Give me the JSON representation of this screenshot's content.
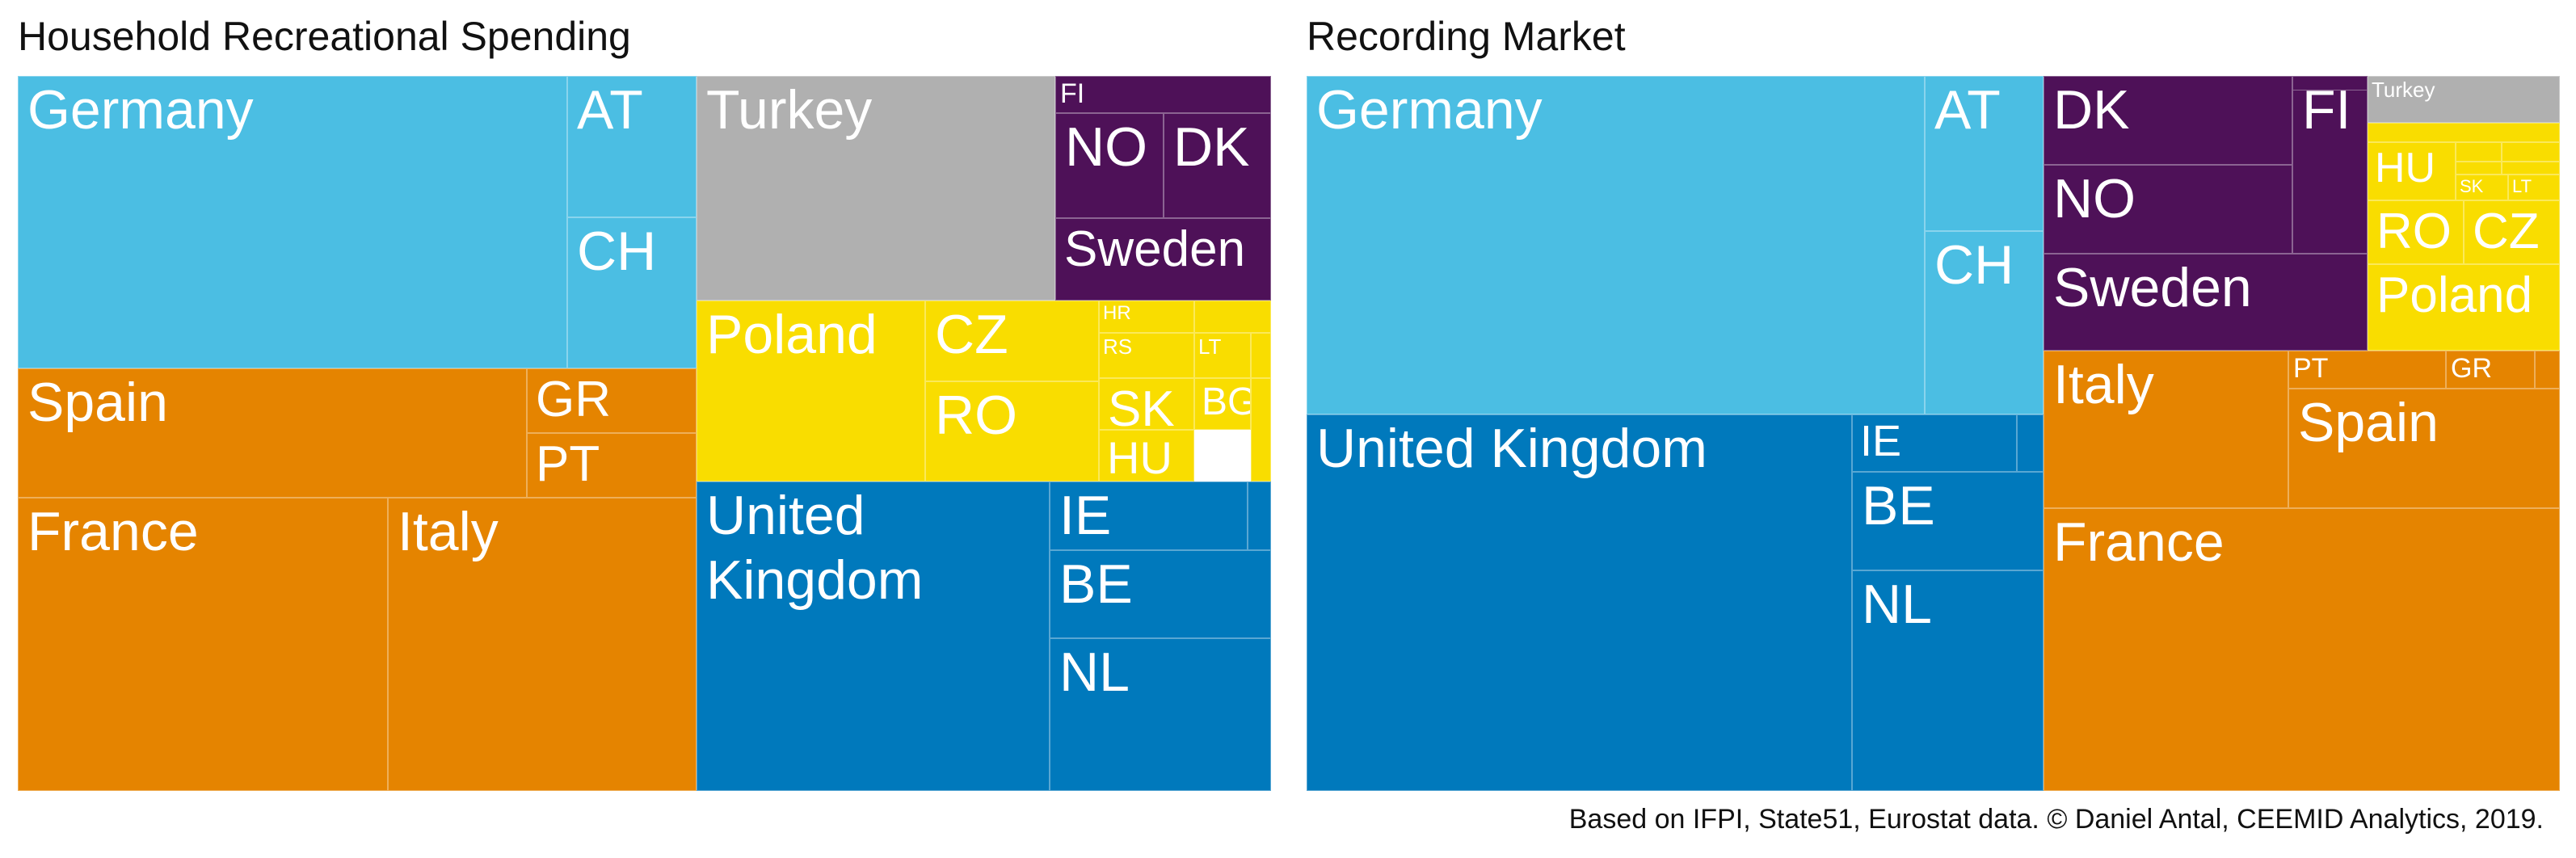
{
  "palette": {
    "central_west": "#4bbee3",
    "south_west": "#e58400",
    "turkey": "#b0b0b0",
    "nordic": "#4e1158",
    "central_east": "#f9dd00",
    "north_west": "#0079bc"
  },
  "footnote": "Based on IFPI, State51, Eurostat data. © Daniel Antal, CEEMID Analytics, 2019.",
  "chart_data": [
    {
      "type": "treemap",
      "title": "Household Recreational Spending",
      "tiles": [
        {
          "id": "germany",
          "label": "Germany",
          "group": "central_west"
        },
        {
          "id": "at",
          "label": "AT",
          "group": "central_west"
        },
        {
          "id": "ch",
          "label": "CH",
          "group": "central_west"
        },
        {
          "id": "spain",
          "label": "Spain",
          "group": "south_west"
        },
        {
          "id": "gr",
          "label": "GR",
          "group": "south_west"
        },
        {
          "id": "pt",
          "label": "PT",
          "group": "south_west"
        },
        {
          "id": "france",
          "label": "France",
          "group": "south_west"
        },
        {
          "id": "italy",
          "label": "Italy",
          "group": "south_west"
        },
        {
          "id": "turkey",
          "label": "Turkey",
          "group": "turkey"
        },
        {
          "id": "fi",
          "label": "FI",
          "group": "nordic"
        },
        {
          "id": "no",
          "label": "NO",
          "group": "nordic"
        },
        {
          "id": "dk",
          "label": "DK",
          "group": "nordic"
        },
        {
          "id": "sweden",
          "label": "Sweden",
          "group": "nordic"
        },
        {
          "id": "poland",
          "label": "Poland",
          "group": "central_east"
        },
        {
          "id": "cz",
          "label": "CZ",
          "group": "central_east"
        },
        {
          "id": "ro",
          "label": "RO",
          "group": "central_east"
        },
        {
          "id": "hr",
          "label": "HR",
          "group": "central_east"
        },
        {
          "id": "rs",
          "label": "RS",
          "group": "central_east"
        },
        {
          "id": "lt",
          "label": "LT",
          "group": "central_east"
        },
        {
          "id": "sk",
          "label": "SK",
          "group": "central_east"
        },
        {
          "id": "bg",
          "label": "BG",
          "group": "central_east"
        },
        {
          "id": "hu",
          "label": "HU",
          "group": "central_east"
        },
        {
          "id": "ce_small_1",
          "label": "",
          "group": "central_east"
        },
        {
          "id": "ce_small_2",
          "label": "",
          "group": "central_east"
        },
        {
          "id": "ce_small_3",
          "label": "",
          "group": "central_east"
        },
        {
          "id": "uk",
          "label": "United Kingdom",
          "group": "north_west"
        },
        {
          "id": "ie",
          "label": "IE",
          "group": "north_west"
        },
        {
          "id": "nw_small_1",
          "label": "",
          "group": "north_west"
        },
        {
          "id": "be",
          "label": "BE",
          "group": "north_west"
        },
        {
          "id": "nl",
          "label": "NL",
          "group": "north_west"
        }
      ]
    },
    {
      "type": "treemap",
      "title": "Recording Market",
      "tiles": [
        {
          "id": "germany",
          "label": "Germany",
          "group": "central_west"
        },
        {
          "id": "at",
          "label": "AT",
          "group": "central_west"
        },
        {
          "id": "ch",
          "label": "CH",
          "group": "central_west"
        },
        {
          "id": "uk",
          "label": "United Kingdom",
          "group": "north_west"
        },
        {
          "id": "ie",
          "label": "IE",
          "group": "north_west"
        },
        {
          "id": "nw_small_1",
          "label": "",
          "group": "north_west"
        },
        {
          "id": "be",
          "label": "BE",
          "group": "north_west"
        },
        {
          "id": "nl",
          "label": "NL",
          "group": "north_west"
        },
        {
          "id": "dk",
          "label": "DK",
          "group": "nordic"
        },
        {
          "id": "no",
          "label": "NO",
          "group": "nordic"
        },
        {
          "id": "fi",
          "label": "FI",
          "group": "nordic"
        },
        {
          "id": "nordic_small_1",
          "label": "",
          "group": "nordic"
        },
        {
          "id": "sweden",
          "label": "Sweden",
          "group": "nordic"
        },
        {
          "id": "turkey",
          "label": "Turkey",
          "group": "turkey"
        },
        {
          "id": "ce_small_1",
          "label": "",
          "group": "central_east"
        },
        {
          "id": "ce_small_2",
          "label": "",
          "group": "central_east"
        },
        {
          "id": "ce_small_3",
          "label": "",
          "group": "central_east"
        },
        {
          "id": "ce_small_4",
          "label": "",
          "group": "central_east"
        },
        {
          "id": "ce_small_5",
          "label": "",
          "group": "central_east"
        },
        {
          "id": "hu",
          "label": "HU",
          "group": "central_east"
        },
        {
          "id": "sk",
          "label": "SK",
          "group": "central_east"
        },
        {
          "id": "lt",
          "label": "LT",
          "group": "central_east"
        },
        {
          "id": "ro",
          "label": "RO",
          "group": "central_east"
        },
        {
          "id": "cz",
          "label": "CZ",
          "group": "central_east"
        },
        {
          "id": "poland",
          "label": "Poland",
          "group": "central_east"
        },
        {
          "id": "italy",
          "label": "Italy",
          "group": "south_west"
        },
        {
          "id": "pt",
          "label": "PT",
          "group": "south_west"
        },
        {
          "id": "gr",
          "label": "GR",
          "group": "south_west"
        },
        {
          "id": "sw_small_1",
          "label": "",
          "group": "south_west"
        },
        {
          "id": "spain",
          "label": "Spain",
          "group": "south_west"
        },
        {
          "id": "france",
          "label": "France",
          "group": "south_west"
        }
      ]
    }
  ]
}
